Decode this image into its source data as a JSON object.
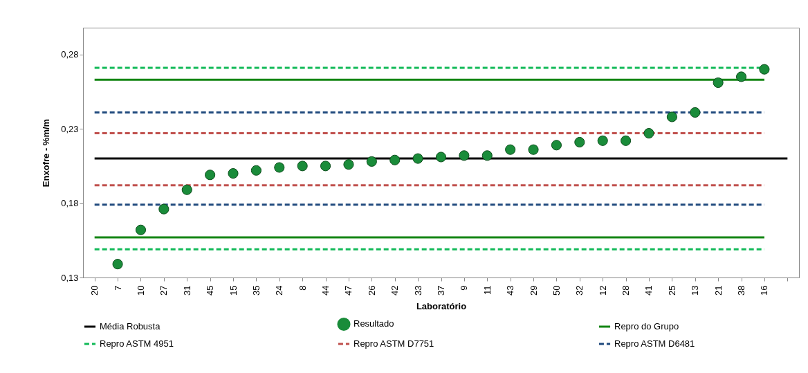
{
  "chart_data": {
    "type": "scatter",
    "xlabel": "Laboratório",
    "ylabel": "Enxofre - %m/m",
    "categories": [
      "20",
      "7",
      "10",
      "27",
      "31",
      "45",
      "15",
      "35",
      "24",
      "8",
      "44",
      "47",
      "26",
      "42",
      "33",
      "37",
      "9",
      "11",
      "43",
      "29",
      "50",
      "32",
      "12",
      "28",
      "41",
      "25",
      "13",
      "21",
      "38",
      "16",
      null
    ],
    "series": [
      {
        "name": "Média Robusta",
        "type": "line",
        "color": "#000000",
        "line_style": "solid",
        "values": [
          0.21,
          0.21,
          0.21,
          0.21,
          0.21,
          0.21,
          0.21,
          0.21,
          0.21,
          0.21,
          0.21,
          0.21,
          0.21,
          0.21,
          0.21,
          0.21,
          0.21,
          0.21,
          0.21,
          0.21,
          0.21,
          0.21,
          0.21,
          0.21,
          0.21,
          0.21,
          0.21,
          0.21,
          0.21,
          0.21,
          0.21
        ]
      },
      {
        "name": "Resultado",
        "color": "#1a8c3a",
        "marker": "circle",
        "values": [
          null,
          0.139,
          0.162,
          0.176,
          0.189,
          0.199,
          0.2,
          0.202,
          0.204,
          0.205,
          0.205,
          0.206,
          0.208,
          0.209,
          0.21,
          0.211,
          0.212,
          0.212,
          0.216,
          0.216,
          0.219,
          0.221,
          0.222,
          0.222,
          0.227,
          0.238,
          0.241,
          0.261,
          0.265,
          0.27,
          null
        ]
      },
      {
        "name": "Repro do Grupo",
        "type": "line",
        "color": "#138513",
        "line_style": "solid",
        "values": [
          0.263,
          0.263,
          0.263,
          0.263,
          0.263,
          0.263,
          0.263,
          0.263,
          0.263,
          0.263,
          0.263,
          0.263,
          0.263,
          0.263,
          0.263,
          0.263,
          0.263,
          0.263,
          0.263,
          0.263,
          0.263,
          0.263,
          0.263,
          0.263,
          0.263,
          0.263,
          0.263,
          0.263,
          0.263,
          0.263,
          null
        ]
      },
      {
        "type": "line",
        "color": "#138513",
        "line_style": "solid",
        "values": [
          0.157,
          0.157,
          0.157,
          0.157,
          0.157,
          0.157,
          0.157,
          0.157,
          0.157,
          0.157,
          0.157,
          0.157,
          0.157,
          0.157,
          0.157,
          0.157,
          0.157,
          0.157,
          0.157,
          0.157,
          0.157,
          0.157,
          0.157,
          0.157,
          0.157,
          0.157,
          0.157,
          0.157,
          0.157,
          0.157,
          null
        ]
      },
      {
        "name": "Repro ASTM 4951",
        "type": "line",
        "color": "#10b957",
        "line_style": "dashed",
        "values": [
          0.271,
          0.271,
          0.271,
          0.271,
          0.271,
          0.271,
          0.271,
          0.271,
          0.271,
          0.271,
          0.271,
          0.271,
          0.271,
          0.271,
          0.271,
          0.271,
          0.271,
          0.271,
          0.271,
          0.271,
          0.271,
          0.271,
          0.271,
          0.271,
          0.271,
          0.271,
          0.271,
          0.271,
          0.271,
          0.271,
          null
        ]
      },
      {
        "type": "line",
        "color": "#10b957",
        "line_style": "dashed",
        "values": [
          0.149,
          0.149,
          0.149,
          0.149,
          0.149,
          0.149,
          0.149,
          0.149,
          0.149,
          0.149,
          0.149,
          0.149,
          0.149,
          0.149,
          0.149,
          0.149,
          0.149,
          0.149,
          0.149,
          0.149,
          0.149,
          0.149,
          0.149,
          0.149,
          0.149,
          0.149,
          0.149,
          0.149,
          0.149,
          0.149,
          null
        ]
      },
      {
        "name": "Repro ASTM D7751",
        "type": "line",
        "color": "#c0504d",
        "line_style": "dashed",
        "values": [
          0.227,
          0.227,
          0.227,
          0.227,
          0.227,
          0.227,
          0.227,
          0.227,
          0.227,
          0.227,
          0.227,
          0.227,
          0.227,
          0.227,
          0.227,
          0.227,
          0.227,
          0.227,
          0.227,
          0.227,
          0.227,
          0.227,
          0.227,
          0.227,
          0.227,
          0.227,
          0.227,
          0.227,
          0.227,
          0.227,
          null
        ]
      },
      {
        "type": "line",
        "color": "#c0504d",
        "line_style": "dashed",
        "values": [
          0.192,
          0.192,
          0.192,
          0.192,
          0.192,
          0.192,
          0.192,
          0.192,
          0.192,
          0.192,
          0.192,
          0.192,
          0.192,
          0.192,
          0.192,
          0.192,
          0.192,
          0.192,
          0.192,
          0.192,
          0.192,
          0.192,
          0.192,
          0.192,
          0.192,
          0.192,
          0.192,
          0.192,
          0.192,
          0.192,
          null
        ]
      },
      {
        "name": "Repro ASTM D6481",
        "type": "line",
        "color": "#1f497d",
        "line_style": "dashed",
        "values": [
          0.241,
          0.241,
          0.241,
          0.241,
          0.241,
          0.241,
          0.241,
          0.241,
          0.241,
          0.241,
          0.241,
          0.241,
          0.241,
          0.241,
          0.241,
          0.241,
          0.241,
          0.241,
          0.241,
          0.241,
          0.241,
          0.241,
          0.241,
          0.241,
          0.241,
          0.241,
          0.241,
          0.241,
          0.241,
          0.241,
          null
        ]
      },
      {
        "type": "line",
        "color": "#1f497d",
        "line_style": "dashed",
        "values": [
          0.179,
          0.179,
          0.179,
          0.179,
          0.179,
          0.179,
          0.179,
          0.179,
          0.179,
          0.179,
          0.179,
          0.179,
          0.179,
          0.179,
          0.179,
          0.179,
          0.179,
          0.179,
          0.179,
          0.179,
          0.179,
          0.179,
          0.179,
          0.179,
          0.179,
          0.179,
          0.179,
          0.179,
          0.179,
          0.179,
          null
        ]
      }
    ],
    "ylim": [
      0.13,
      0.298
    ],
    "yticks": [
      {
        "value": 0.13,
        "label": "0,13"
      },
      {
        "value": 0.18,
        "label": "0,18"
      },
      {
        "value": 0.23,
        "label": "0,23"
      },
      {
        "value": 0.28,
        "label": "0,28"
      }
    ],
    "grid": false,
    "legend": "bottom"
  }
}
